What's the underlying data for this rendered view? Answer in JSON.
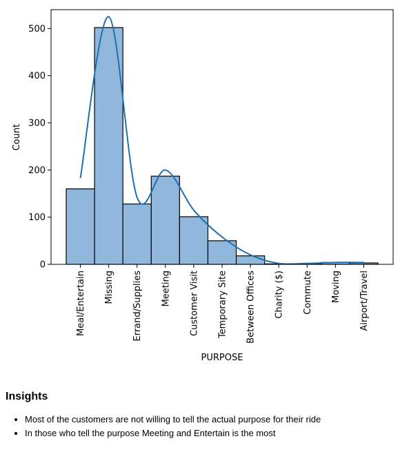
{
  "chart_data": {
    "type": "bar",
    "xlabel": "PURPOSE",
    "ylabel": "Count",
    "categories": [
      "Meal/Entertain",
      "Missing",
      "Errand/Supplies",
      "Meeting",
      "Customer Visit",
      "Temporary Site",
      "Between Offices",
      "Charity ($)",
      "Commute",
      "Moving",
      "Airport/Travel"
    ],
    "values": [
      160,
      502,
      128,
      187,
      101,
      50,
      18,
      1,
      1,
      4,
      3
    ],
    "kde": [
      183,
      525,
      142,
      200,
      115,
      58,
      20,
      2,
      2,
      4,
      4
    ],
    "ylim": [
      0,
      540
    ],
    "yticks": [
      0,
      100,
      200,
      300,
      400,
      500
    ],
    "bar_color": "#8fb8dc",
    "line_color": "#1f6fb0",
    "grid": false
  },
  "insights": {
    "title": "Insights",
    "items": [
      "Most of the customers are not willing to tell the actual purpose for their ride",
      "In those who tell the purpose Meeting and Entertain is the most"
    ]
  }
}
